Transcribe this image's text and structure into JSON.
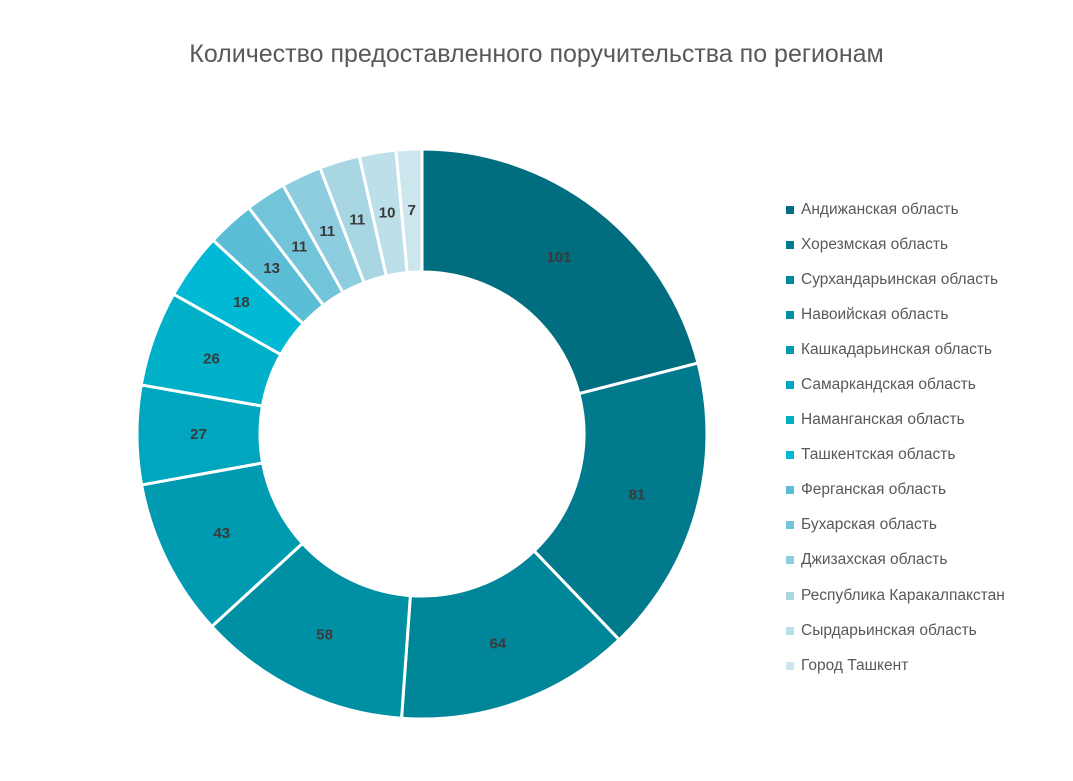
{
  "chart_data": {
    "type": "pie",
    "subtype": "donut",
    "title": "Количество предоставленного поручительства по регионам",
    "legend_position": "right",
    "categories": [
      "Андижанская область",
      "Хорезмская область",
      "Сурхандарьинская область",
      "Навоийская область",
      "Кашкадарьинская область",
      "Самаркандская область",
      "Наманганская область",
      "Ташкентская область",
      "Ферганская область",
      "Бухарская область",
      "Джизахская область",
      "Республика Каракалпакстан",
      "Сырдарьинская область",
      "Город Ташкент"
    ],
    "values": [
      101,
      81,
      64,
      58,
      43,
      27,
      26,
      18,
      13,
      11,
      11,
      11,
      10,
      7
    ],
    "colors": [
      "#006e7f",
      "#007a8c",
      "#008699",
      "#0090a4",
      "#009bb0",
      "#00a6bd",
      "#00b0c8",
      "#00b9d4",
      "#5bbed6",
      "#72c4d9",
      "#8dcddf",
      "#a8d6e3",
      "#bcdfe9",
      "#cce6ee"
    ]
  }
}
